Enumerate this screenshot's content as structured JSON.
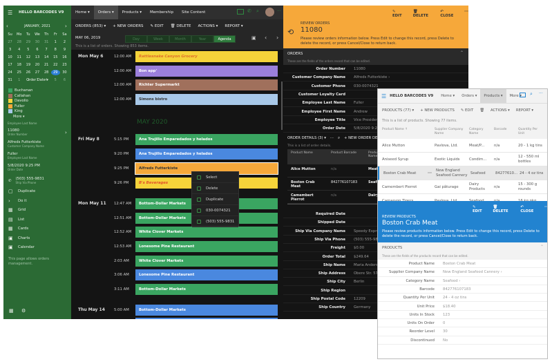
{
  "app": {
    "title": "HELLO BARCODES V9"
  },
  "nav": [
    "Home ▾",
    "Orders ▾",
    "Products ▾",
    "Membership",
    "Site Content"
  ],
  "toolbar": {
    "orders": "ORDERS (853) ▾",
    "new": "+ NEW ORDERS",
    "edit": "EDIT",
    "delete": "DELETE",
    "actions": "ACTIONS ▾",
    "report": "REPORT ▾"
  },
  "date_row": {
    "date": "MAY 06, 2019",
    "views": [
      "Day",
      "Week",
      "Month",
      "Year",
      "Agenda"
    ],
    "active": "Agenda"
  },
  "info": "This is a list of orders. Showing 853 items.",
  "calendar": {
    "month": "JANUARY, 2021",
    "weekdays": [
      "Su",
      "Mo",
      "Tu",
      "We",
      "Th",
      "Fr",
      "Sa"
    ],
    "days": [
      "27",
      "28",
      "29",
      "30",
      "31",
      "1",
      "2",
      "3",
      "4",
      "5",
      "6",
      "7",
      "8",
      "9",
      "10",
      "11",
      "12",
      "13",
      "14",
      "15",
      "16",
      "17",
      "18",
      "19",
      "20",
      "21",
      "22",
      "23",
      "24",
      "25",
      "26",
      "27",
      "28",
      "29",
      "30",
      "31",
      "1",
      "2",
      "3",
      "4",
      "5",
      "6"
    ],
    "selected": "29"
  },
  "sidebar": {
    "order_date": "Order Date ▾",
    "legend": [
      {
        "name": "Buchanan",
        "color": "#3aa561"
      },
      {
        "name": "Callahan",
        "color": "#a0705c"
      },
      {
        "name": "Davolio",
        "color": "#f5d33a"
      },
      {
        "name": "Fuller",
        "color": "#f6a83a"
      },
      {
        "name": "King",
        "color": "#a8c8e8"
      }
    ],
    "more": "More ▾",
    "emp_label": "Employee Last Name",
    "fields": [
      {
        "value": "11080",
        "label": "Order Number"
      },
      {
        "value": "Alfreds Futterkiste",
        "label": "Customer Company Name"
      },
      {
        "value": "Fuller",
        "label": "Employee Last Name"
      },
      {
        "value": "5/8/2020 9:25 PM",
        "label": "Order Date"
      }
    ],
    "phone": {
      "value": "(503) 555-9831",
      "label": "Ship Via Phone"
    },
    "actions": [
      "Duplicate",
      "Do it",
      "Grid",
      "List",
      "Cards",
      "Charts",
      "Calendar"
    ],
    "description": "This page allows orders management."
  },
  "agenda": {
    "month_label": "MAY 2020",
    "days": [
      {
        "label": "Mon May 6"
      },
      {
        "label": "Fri May 8"
      },
      {
        "label": "Mon May 11"
      },
      {
        "label": "Thu May 14"
      }
    ],
    "events": [
      {
        "time": "12:00 AM",
        "title": "Rattlesnake Canyon Grocery",
        "color": "#f5d33a",
        "text": "#e0702a"
      },
      {
        "time": "12:00 AM",
        "title": "Bon app'",
        "color": "#9b7fdb",
        "text": "#fff"
      },
      {
        "time": "12:00 AM",
        "title": "Richter Supermarkt",
        "color": "#a0705c",
        "text": "#fff"
      },
      {
        "time": "12:00 AM",
        "title": "Simons bistro",
        "color": "#a8c8e8",
        "text": "#333"
      },
      {
        "time": "5:15 PM",
        "title": "Ana Trujillo Emparedados y helados",
        "color": "#3aa561",
        "text": "#fff"
      },
      {
        "time": "9:20 PM",
        "title": "Ana Trujillo Emparedados y helados",
        "color": "#4a88df",
        "text": "#fff"
      },
      {
        "time": "9:25 PM",
        "title": "Alfreds Futterkiste",
        "color": "#f6a83a",
        "text": "#333"
      },
      {
        "time": "9:26 PM",
        "title": "B's Beverages",
        "color": "#f5d33a",
        "text": "#e0502a"
      },
      {
        "time": "12:47 AM",
        "title": "Bottom-Dollar Markets",
        "color": "#3aa561",
        "text": "#fff"
      },
      {
        "time": "12:51 AM",
        "title": "Bottom-Dollar Markets",
        "color": "#3aa561",
        "text": "#fff"
      },
      {
        "time": "12:52 AM",
        "title": "White Clover Markets",
        "color": "#3aa561",
        "text": "#fff"
      },
      {
        "time": "12:53 AM",
        "title": "Lonesome Pine Restaurant",
        "color": "#3aa561",
        "text": "#fff"
      },
      {
        "time": "2:03 AM",
        "title": "White Clover Markets",
        "color": "#3aa561",
        "text": "#fff"
      },
      {
        "time": "3:06 AM",
        "title": "Lonesome Pine Restaurant",
        "color": "#4a88df",
        "text": "#fff"
      },
      {
        "time": "3:11 AM",
        "title": "Bottom-Dollar Markets",
        "color": "#3aa561",
        "text": "#fff"
      },
      {
        "time": "5:00 AM",
        "title": "Bottom-Dollar Markets",
        "color": "#4a88df",
        "text": "#fff"
      }
    ]
  },
  "context_menu": [
    "Select",
    "Delete",
    "Duplicate",
    "030-0074321",
    "(503) 555-9831"
  ],
  "review_orders": {
    "actions": {
      "edit": "EDIT",
      "delete": "DELETE",
      "close": "CLOSE"
    },
    "kicker": "REVIEW ORDERS",
    "title": "11080",
    "desc": "Please review orders information below. Press Edit to change this record, press Delete to delete the record, or press Cancel/Close to return back.",
    "section": "ORDERS",
    "section_desc": "These are the fields of the orders record that can be edited.",
    "fields": [
      {
        "l": "Order Number",
        "v": "11080"
      },
      {
        "l": "Customer Company Name",
        "v": "Alfreds Futterkiste ›"
      },
      {
        "l": "Customer Phone",
        "v": "030-0074321"
      },
      {
        "l": "Customer Loyalty Card",
        "v": ""
      },
      {
        "l": "Employee Last Name",
        "v": "Fuller"
      },
      {
        "l": "Employee First Name",
        "v": "Andrew"
      },
      {
        "l": "Employee Title",
        "v": "Vice President, Sales"
      },
      {
        "l": "Order Date",
        "v": "5/8/2020 9:25 PM"
      }
    ],
    "details": {
      "title": "ORDER DETAILS (3) ▾",
      "new": "+ NEW ORDER DETAILS",
      "info": "This is a list of order details.",
      "columns": [
        "Product Name",
        "Product Barcode",
        "Product Category Name"
      ],
      "rows": [
        [
          "Alice Mutton",
          "n/a",
          "Meat/Poultry"
        ],
        [
          "Boston Crab Meat",
          "842776107183",
          "Seafood"
        ],
        [
          "Camembert Pierrot",
          "n/a",
          "Dairy Products"
        ]
      ]
    },
    "fields2": [
      {
        "l": "Required Date",
        "v": ""
      },
      {
        "l": "Shipped Date",
        "v": ""
      },
      {
        "l": "Ship Via Company Name",
        "v": "Speedy Express"
      },
      {
        "l": "Ship Via Phone",
        "v": "(503) 555-9831"
      },
      {
        "l": "Freight",
        "v": "$0.00"
      },
      {
        "l": "Order Total",
        "v": "$249.64"
      },
      {
        "l": "Ship Name",
        "v": "Maria Anders"
      },
      {
        "l": "Ship Address",
        "v": "Obere Str. 57"
      },
      {
        "l": "Ship City",
        "v": "Berlin"
      },
      {
        "l": "Ship Region",
        "v": ""
      },
      {
        "l": "Ship Postal Code",
        "v": "12209"
      },
      {
        "l": "Ship Country",
        "v": "Germany"
      }
    ]
  },
  "products_window": {
    "title": "HELLO BARCODES V9",
    "nav": [
      "Home ▾",
      "Orders ▾",
      "Products ▾",
      "More ▾"
    ],
    "toolbar": {
      "products": "PRODUCTS (77) ▾",
      "new": "+ NEW PRODUCTS",
      "edit": "EDIT",
      "actions": "ACTIONS ▾",
      "report": "REPORT ▾"
    },
    "info": "This is a list of products. Showing 77 items.",
    "columns": [
      "Product Name ↑",
      "Supplier Company Name",
      "Category Name",
      "Barcode",
      "Quantity Per Unit"
    ],
    "rows": [
      [
        "Alice Mutton",
        "Pavlova, Ltd.",
        "Meat/P...",
        "n/a",
        "20 - 1 kg tins"
      ],
      [
        "Aniseed Syrup",
        "Exotic Liquids",
        "Condim...",
        "n/a",
        "12 - 550 ml bottles"
      ],
      [
        "Boston Crab Meat",
        "New England Seafood Cannery",
        "Seafood",
        "84277610...",
        "24 - 4 oz tins"
      ],
      [
        "Camembert Pierrot",
        "Gai pâturage",
        "Dairy Products",
        "n/a",
        "15 - 300 g rounds"
      ],
      [
        "Carnarvon Tigers",
        "Pavlova, Ltd.",
        "Seafood",
        "n/a",
        "16 kg pkg."
      ]
    ],
    "review": {
      "actions": {
        "edit": "EDIT",
        "delete": "DELETE",
        "close": "CLOSE"
      },
      "kicker": "REVIEW PRODUCTS",
      "title": "Boston Crab Meat",
      "desc": "Please review products information below. Press Edit to change this record, press Delete to delete the record, or press Cancel/Close to return back.",
      "section": "PRODUCTS",
      "section_desc": "These are the fields of the products record that can be edited.",
      "fields": [
        {
          "l": "Product Name",
          "v": "Boston Crab Meat"
        },
        {
          "l": "Supplier Company Name",
          "v": "New England Seafood Cannery ›"
        },
        {
          "l": "Category Name",
          "v": "Seafood ›"
        },
        {
          "l": "Barcode",
          "v": "842776107183"
        },
        {
          "l": "Quantity Per Unit",
          "v": "24 - 4 oz tins"
        },
        {
          "l": "Unit Price",
          "v": "$18.40"
        },
        {
          "l": "Units In Stock",
          "v": "123"
        },
        {
          "l": "Units On Order",
          "v": "0"
        },
        {
          "l": "Reorder Level",
          "v": "30"
        },
        {
          "l": "Discontinued",
          "v": "No"
        }
      ]
    }
  }
}
